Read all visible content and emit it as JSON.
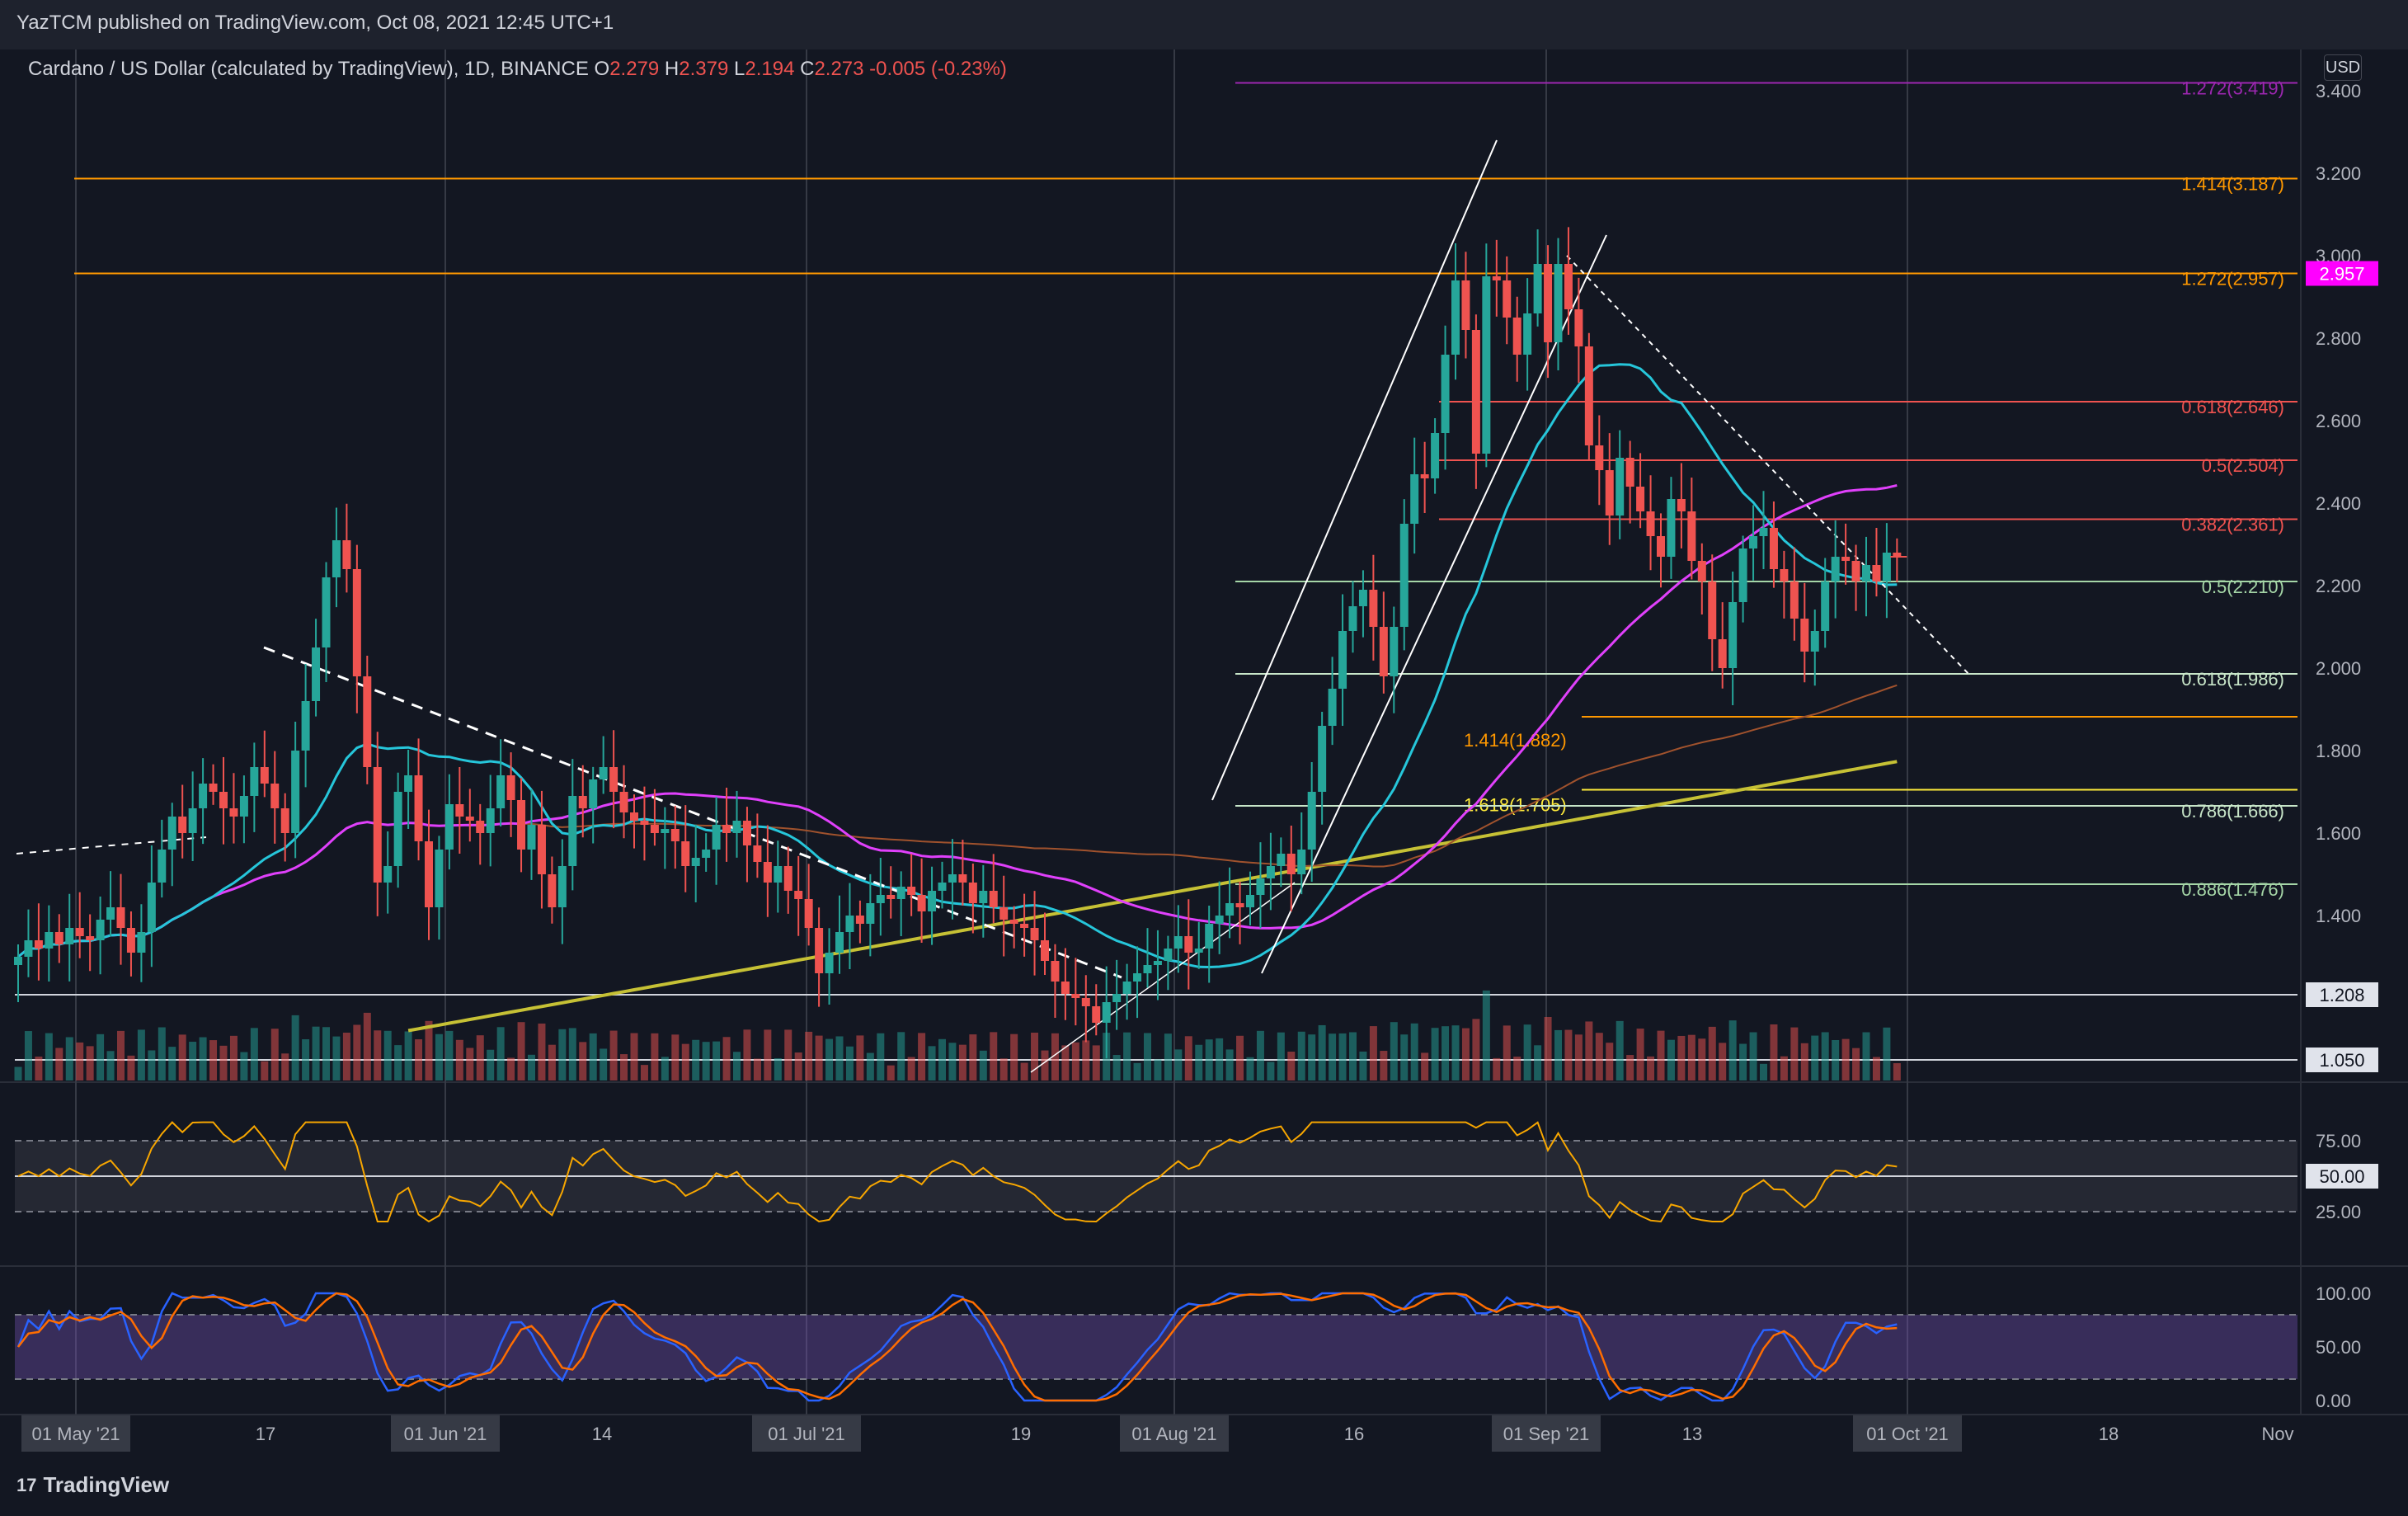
{
  "header": {
    "published": "YazTCM published on TradingView.com, Oct 08, 2021 12:45 UTC+1",
    "symbol": "Cardano / US Dollar (calculated by TradingView), 1D, BINANCE",
    "o_label": "O",
    "o_value": "2.279",
    "h_label": "H",
    "h_value": "2.379",
    "l_label": "L",
    "l_value": "2.194",
    "c_label": "C",
    "c_value": "2.273",
    "change": "-0.005 (-0.23%)",
    "currency": "USD"
  },
  "footer": {
    "brand": "TradingView"
  },
  "colors": {
    "up": "#26a69a",
    "down": "#ef5350",
    "rsi": "#f7a600",
    "stoch_k": "#2962ff",
    "stoch_d": "#ff6d00"
  },
  "chart_data": {
    "type": "candlestick",
    "x_tick_labels": [
      "01 May '21",
      "17",
      "01 Jun '21",
      "14",
      "01 Jul '21",
      "19",
      "01 Aug '21",
      "16",
      "01 Sep '21",
      "13",
      "01 Oct '21",
      "18",
      "Nov"
    ],
    "price_ticks": [
      "3.400",
      "3.200",
      "3.000",
      "2.800",
      "2.600",
      "2.400",
      "2.200",
      "2.000",
      "1.800",
      "1.600",
      "1.400"
    ],
    "price_labels": [
      {
        "text": "2.957",
        "value": 2.957,
        "color": "#ff00ff"
      },
      {
        "text": "1.208",
        "value": 1.208,
        "color": "#ffffff"
      },
      {
        "text": "1.050",
        "value": 1.05,
        "color": "#ffffff"
      }
    ],
    "fib_levels": [
      {
        "label": "1.272(3.419)",
        "value": 3.419,
        "color": "#9c27b0"
      },
      {
        "label": "1.414(3.187)",
        "value": 3.187,
        "color": "#ff9800"
      },
      {
        "label": "1.272(2.957)",
        "value": 2.957,
        "color": "#ff9800"
      },
      {
        "label": "0.618(2.646)",
        "value": 2.646,
        "color": "#ef5350"
      },
      {
        "label": "0.5(2.504)",
        "value": 2.504,
        "color": "#ef5350"
      },
      {
        "label": "0.382(2.361)",
        "value": 2.361,
        "color": "#ef5350"
      },
      {
        "label": "0.5(2.210)",
        "value": 2.21,
        "color": "#a5d6a7"
      },
      {
        "label": "0.618(1.986)",
        "value": 1.986,
        "color": "#c8e6c9"
      },
      {
        "label": "1.414(1.882)",
        "value": 1.882,
        "color": "#ff9800"
      },
      {
        "label": "1.618(1.705)",
        "value": 1.705,
        "color": "#ffeb3b"
      },
      {
        "label": "0.786(1.666)",
        "value": 1.666,
        "color": "#c8e6c9"
      },
      {
        "label": "0.886(1.476)",
        "value": 1.476,
        "color": "#a5d6a7"
      }
    ],
    "closes": [
      1.3,
      1.34,
      1.32,
      1.36,
      1.33,
      1.37,
      1.35,
      1.34,
      1.39,
      1.42,
      1.37,
      1.31,
      1.36,
      1.48,
      1.56,
      1.64,
      1.6,
      1.66,
      1.72,
      1.7,
      1.66,
      1.64,
      1.69,
      1.76,
      1.72,
      1.66,
      1.6,
      1.8,
      1.92,
      2.05,
      2.22,
      2.31,
      2.24,
      1.98,
      1.76,
      1.48,
      1.52,
      1.7,
      1.74,
      1.58,
      1.42,
      1.56,
      1.67,
      1.64,
      1.63,
      1.6,
      1.66,
      1.74,
      1.68,
      1.56,
      1.62,
      1.5,
      1.42,
      1.52,
      1.69,
      1.66,
      1.73,
      1.76,
      1.7,
      1.65,
      1.63,
      1.62,
      1.6,
      1.61,
      1.58,
      1.52,
      1.54,
      1.56,
      1.62,
      1.6,
      1.63,
      1.57,
      1.53,
      1.48,
      1.52,
      1.46,
      1.44,
      1.37,
      1.26,
      1.31,
      1.36,
      1.4,
      1.38,
      1.43,
      1.45,
      1.44,
      1.47,
      1.45,
      1.41,
      1.46,
      1.48,
      1.5,
      1.48,
      1.43,
      1.46,
      1.42,
      1.39,
      1.38,
      1.37,
      1.34,
      1.29,
      1.24,
      1.21,
      1.2,
      1.18,
      1.14,
      1.19,
      1.21,
      1.24,
      1.26,
      1.28,
      1.29,
      1.32,
      1.35,
      1.31,
      1.32,
      1.38,
      1.4,
      1.43,
      1.42,
      1.45,
      1.49,
      1.52,
      1.55,
      1.5,
      1.56,
      1.7,
      1.86,
      1.95,
      2.09,
      2.15,
      2.19,
      2.1,
      1.98,
      2.1,
      2.35,
      2.47,
      2.46,
      2.57,
      2.76,
      2.94,
      2.82,
      2.52,
      2.95,
      2.94,
      2.85,
      2.76,
      2.86,
      2.98,
      2.79,
      2.98,
      2.87,
      2.78,
      2.54,
      2.48,
      2.37,
      2.51,
      2.44,
      2.38,
      2.32,
      2.27,
      2.41,
      2.38,
      2.26,
      2.21,
      2.07,
      2.0,
      2.16,
      2.29,
      2.32,
      2.34,
      2.24,
      2.21,
      2.12,
      2.04,
      2.09,
      2.21,
      2.27,
      2.26,
      2.21,
      2.25,
      2.21,
      2.28,
      2.27
    ],
    "volume_peak": "~1.0B",
    "rsi_levels": {
      "upper": "75.00",
      "mid": "50.00",
      "lower": "25.00"
    },
    "stoch_levels": {
      "upper": "100.00",
      "mid": "50.00",
      "lower": "0.00"
    }
  }
}
